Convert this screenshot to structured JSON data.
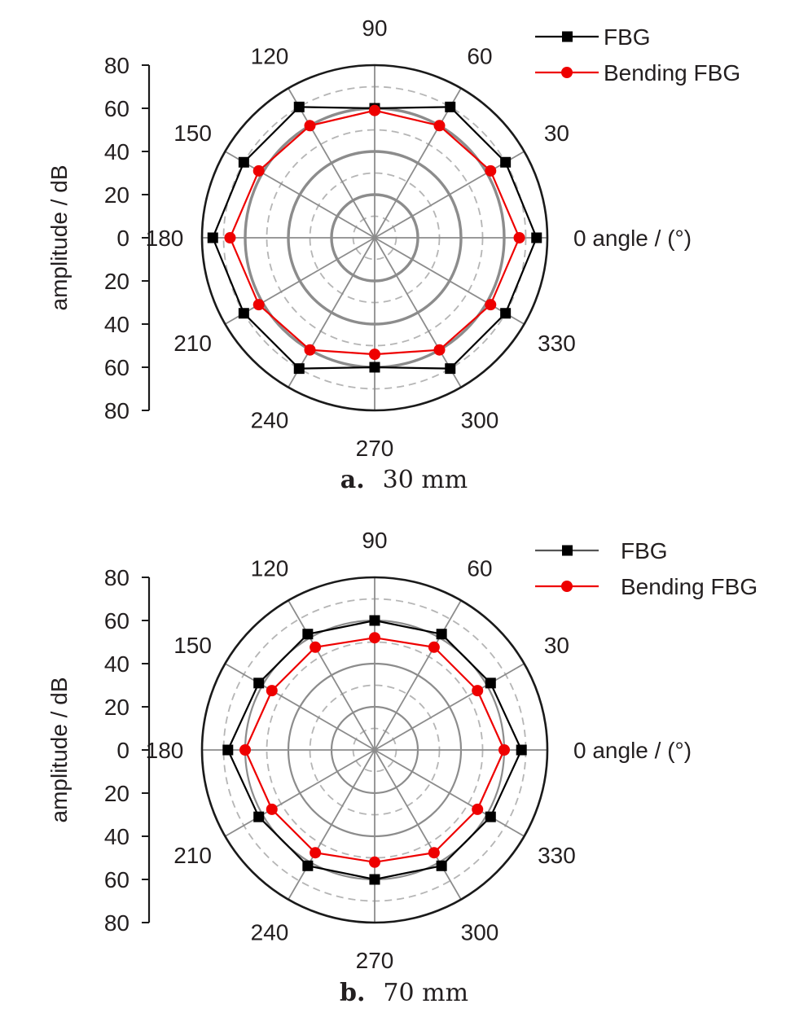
{
  "chart_data": [
    {
      "type": "polar",
      "panel_label": "a.",
      "caption": "30 mm",
      "angle_label": "angle / (°)",
      "r_label": "amplitude / dB",
      "r_ticks": [
        80,
        60,
        40,
        20,
        0,
        20,
        40,
        60,
        80
      ],
      "r_max": 80,
      "angle_ticks": [
        0,
        30,
        60,
        90,
        120,
        150,
        180,
        210,
        240,
        270,
        300,
        330
      ],
      "grid_solid": [
        20,
        40,
        60
      ],
      "grid_dashed": [
        10,
        30,
        50,
        70
      ],
      "legend_position": "top-right",
      "angles": [
        0,
        30,
        60,
        90,
        120,
        150,
        180,
        210,
        240,
        270,
        300,
        330
      ],
      "series": [
        {
          "name": "FBG",
          "marker": "square",
          "color": "#000000",
          "values": [
            75,
            70,
            70,
            60,
            70,
            70,
            75,
            70,
            70,
            60,
            70,
            70
          ]
        },
        {
          "name": "Bending FBG",
          "marker": "circle",
          "color": "#ee0000",
          "values": [
            67,
            62,
            60,
            59,
            60,
            62,
            67,
            62,
            60,
            54,
            60,
            62
          ]
        }
      ]
    },
    {
      "type": "polar",
      "panel_label": "b.",
      "caption": "70 mm",
      "angle_label": "angle / (°)",
      "r_label": "amplitude / dB",
      "r_ticks": [
        80,
        60,
        40,
        20,
        0,
        20,
        40,
        60,
        80
      ],
      "r_max": 80,
      "angle_ticks": [
        0,
        30,
        60,
        90,
        120,
        150,
        180,
        210,
        240,
        270,
        300,
        330
      ],
      "grid_solid": [
        20,
        40,
        60
      ],
      "grid_dashed": [
        10,
        30,
        50,
        70
      ],
      "legend_position": "top-right",
      "angles": [
        0,
        30,
        60,
        90,
        120,
        150,
        180,
        210,
        240,
        270,
        300,
        330
      ],
      "series": [
        {
          "name": "FBG",
          "marker": "square",
          "color": "#000000",
          "values": [
            68,
            62,
            62,
            60,
            62,
            62,
            68,
            62,
            62,
            60,
            62,
            62
          ]
        },
        {
          "name": "Bending FBG",
          "marker": "circle",
          "color": "#ee0000",
          "values": [
            60,
            55,
            55,
            52,
            55,
            55,
            60,
            55,
            55,
            52,
            55,
            55
          ]
        }
      ]
    }
  ]
}
